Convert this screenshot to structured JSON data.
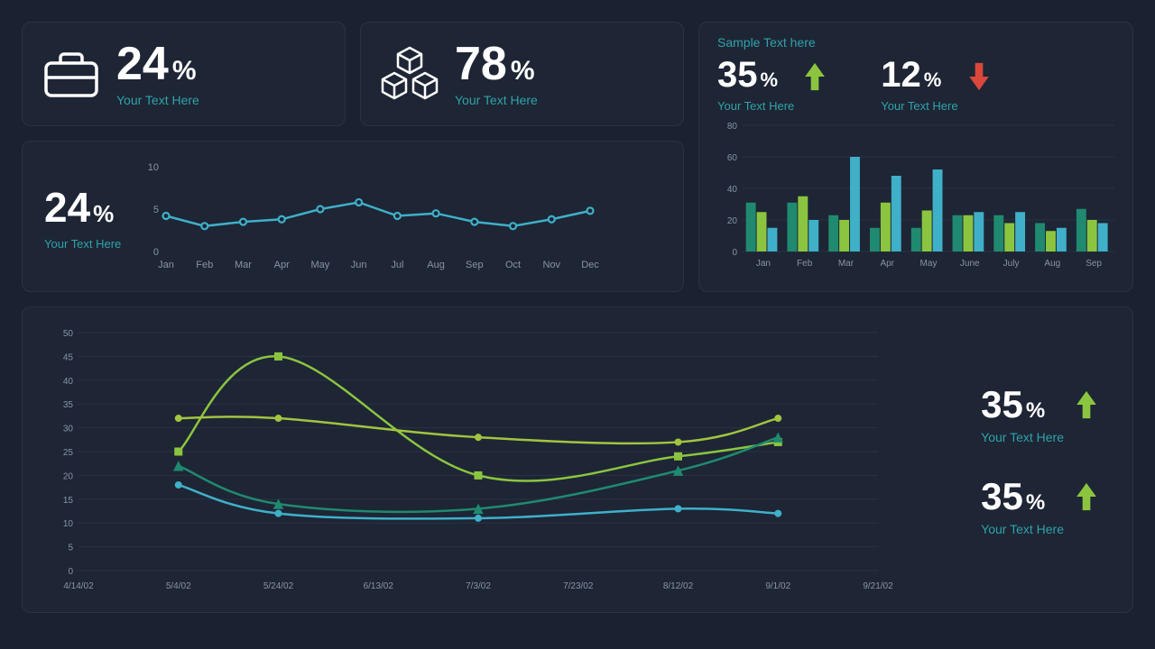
{
  "colors": {
    "bg": "#1b2130",
    "card": "#1e2535",
    "border": "#2a3244",
    "white": "#ffffff",
    "teal_text": "#2fa3a8",
    "axis": "#8a93a6",
    "green_light": "#8bc53f",
    "green_dark": "#1f8a70",
    "cyan": "#3fb0c8",
    "red": "#d9483b"
  },
  "kpi1": {
    "value": "24",
    "unit": "%",
    "subtitle": "Your Text Here",
    "icon": "briefcase"
  },
  "kpi2": {
    "value": "78",
    "unit": "%",
    "subtitle": "Your Text Here",
    "icon": "boxes"
  },
  "sparkline_card": {
    "value": "24",
    "unit": "%",
    "subtitle": "Your Text Here",
    "chart": {
      "type": "line",
      "ylim": [
        0,
        10
      ],
      "yticks": [
        0,
        5,
        10
      ],
      "months": [
        "Jan",
        "Feb",
        "Mar",
        "Apr",
        "May",
        "Jun",
        "Jul",
        "Aug",
        "Sep",
        "Oct",
        "Nov",
        "Dec"
      ],
      "values": [
        4.2,
        3.0,
        3.5,
        3.8,
        5.0,
        5.8,
        4.2,
        4.5,
        3.5,
        3.0,
        3.8,
        4.8
      ],
      "line_color": "#3fb0c8",
      "line_width": 2.5,
      "marker": "circle-open",
      "marker_size": 7
    }
  },
  "top_right": {
    "title": "Sample Text here",
    "stat_a": {
      "value": "35",
      "unit": "%",
      "subtitle": "Your Text Here",
      "arrow": "up",
      "arrow_color": "#8bc53f"
    },
    "stat_b": {
      "value": "12",
      "unit": "%",
      "subtitle": "Your Text Here",
      "arrow": "down",
      "arrow_color": "#d9483b"
    },
    "bar_chart": {
      "type": "grouped-bar",
      "ylim": [
        0,
        80
      ],
      "yticks": [
        0,
        20,
        40,
        60,
        80
      ],
      "categories": [
        "Jan",
        "Feb",
        "Mar",
        "Apr",
        "May",
        "June",
        "July",
        "Aug",
        "Sep"
      ],
      "series": [
        {
          "color": "#1f8a70",
          "values": [
            31,
            31,
            23,
            15,
            15,
            23,
            23,
            18,
            27
          ]
        },
        {
          "color": "#8bc53f",
          "values": [
            25,
            35,
            20,
            31,
            26,
            23,
            18,
            13,
            20
          ]
        },
        {
          "color": "#3fb0c8",
          "values": [
            15,
            20,
            60,
            48,
            52,
            25,
            25,
            15,
            18
          ]
        }
      ],
      "bar_width": 0.26,
      "grid_color": "#2a3244"
    }
  },
  "bottom_chart": {
    "type": "line",
    "ylim": [
      0,
      50
    ],
    "yticks": [
      0,
      5,
      10,
      15,
      20,
      25,
      30,
      35,
      40,
      45,
      50
    ],
    "x_labels": [
      "4/14/02",
      "5/4/02",
      "5/24/02",
      "6/13/02",
      "7/3/02",
      "7/23/02",
      "8/12/02",
      "9/1/02",
      "9/21/02"
    ],
    "x_positions": [
      0,
      1,
      2,
      3,
      4,
      5,
      6,
      7,
      8
    ],
    "series": [
      {
        "color": "#8bc53f",
        "marker": "square",
        "marker_size": 9,
        "line_width": 2.5,
        "points": [
          [
            1,
            25
          ],
          [
            2,
            45
          ],
          [
            4,
            20
          ],
          [
            6,
            24
          ],
          [
            7,
            27
          ]
        ]
      },
      {
        "color": "#a2c43f",
        "marker": "circle",
        "marker_size": 8,
        "line_width": 2.5,
        "points": [
          [
            1,
            32
          ],
          [
            2,
            32
          ],
          [
            4,
            28
          ],
          [
            6,
            27
          ],
          [
            7,
            32
          ]
        ]
      },
      {
        "color": "#1f8a70",
        "marker": "triangle",
        "marker_size": 8,
        "line_width": 2.5,
        "points": [
          [
            1,
            22
          ],
          [
            2,
            14
          ],
          [
            4,
            13
          ],
          [
            6,
            21
          ],
          [
            7,
            28
          ]
        ]
      },
      {
        "color": "#3fb0c8",
        "marker": "circle",
        "marker_size": 8,
        "line_width": 2.5,
        "points": [
          [
            1,
            18
          ],
          [
            2,
            12
          ],
          [
            4,
            11
          ],
          [
            6,
            13
          ],
          [
            7,
            12
          ]
        ]
      }
    ],
    "grid_color": "#2a3244"
  },
  "bottom_stats": {
    "stat_a": {
      "value": "35",
      "unit": "%",
      "subtitle": "Your Text Here",
      "arrow": "up",
      "arrow_color": "#8bc53f"
    },
    "stat_b": {
      "value": "35",
      "unit": "%",
      "subtitle": "Your Text Here",
      "arrow": "up",
      "arrow_color": "#8bc53f"
    }
  }
}
